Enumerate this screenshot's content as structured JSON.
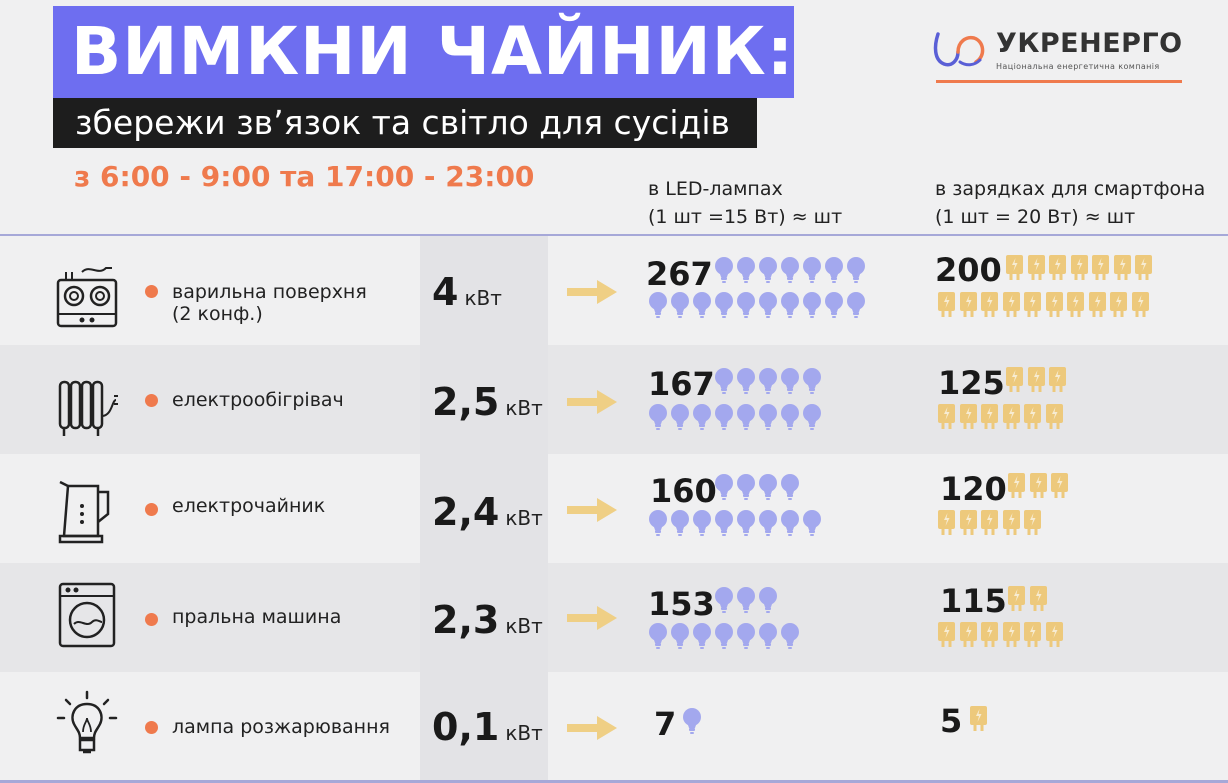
{
  "header": {
    "title": "ВИМКНИ ЧАЙНИК:",
    "subtitle": "збережи зв’язок та світло для сусідів",
    "hours": "з 6:00 - 9:00 та 17:00 - 23:00"
  },
  "logo": {
    "name": "УКРЕНЕРГО",
    "tagline": "Національна енергетична компанія",
    "icon": "ukrenergo-logo-icon"
  },
  "columns": {
    "led_line1": "в LED-лампах",
    "led_line2": "(1 шт =15 Вт) ≈ шт",
    "charger_line1": "в зарядках для смартфона",
    "charger_line2": "(1 шт = 20 Вт) ≈ шт"
  },
  "colors": {
    "accent_purple": "#6e6ef0",
    "accent_orange": "#ef7a4d",
    "bulb": "#a3a8ee",
    "charger": "#edc97c",
    "arrow": "#efcf85"
  },
  "rows": [
    {
      "device": "варильна поверхня\n(2 конф.)",
      "icon": "cooktop-icon",
      "power": "4",
      "unit": "кВт",
      "led": "267",
      "chargers": "200"
    },
    {
      "device": "електрообігрівач",
      "icon": "heater-icon",
      "power": "2,5",
      "unit": "кВт",
      "led": "167",
      "chargers": "125"
    },
    {
      "device": "електрочайник",
      "icon": "kettle-icon",
      "power": "2,4",
      "unit": "кВт",
      "led": "160",
      "chargers": "120"
    },
    {
      "device": "пральна машина",
      "icon": "washing-machine-icon",
      "power": "2,3",
      "unit": "кВт",
      "led": "153",
      "chargers": "115"
    },
    {
      "device": "лампа розжарювання",
      "icon": "incandescent-lamp-icon",
      "power": "0,1",
      "unit": "кВт",
      "led": "7",
      "chargers": "5"
    }
  ]
}
